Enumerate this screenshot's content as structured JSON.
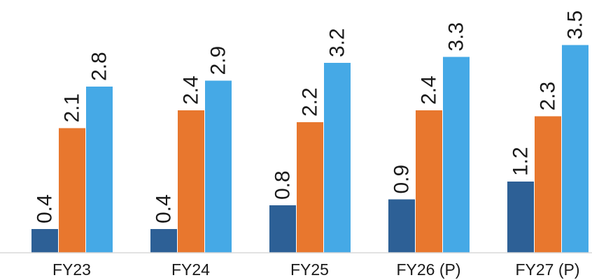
{
  "chart_data": {
    "type": "bar",
    "title": "",
    "xlabel": "",
    "ylabel": "",
    "categories": [
      "FY23",
      "FY24",
      "FY25",
      "FY26 (P)",
      "FY27 (P)"
    ],
    "series": [
      {
        "color": "#2d6096",
        "values": [
          0.4,
          0.4,
          0.8,
          0.9,
          1.2
        ]
      },
      {
        "color": "#e8772e",
        "values": [
          2.1,
          2.4,
          2.2,
          2.4,
          2.3
        ]
      },
      {
        "color": "#45a9e6",
        "values": [
          2.8,
          2.9,
          3.2,
          3.3,
          3.5
        ]
      }
    ],
    "ylim": [
      0,
      3.5
    ],
    "grid": false,
    "legend": "none"
  }
}
